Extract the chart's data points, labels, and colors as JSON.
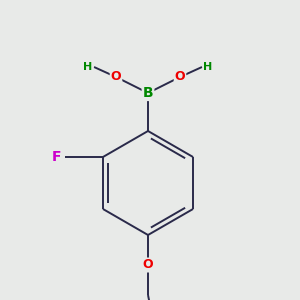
{
  "background_color": "#e8eae8",
  "bond_color": "#2a2a4a",
  "bond_width": 1.4,
  "atom_colors": {
    "B": "#008800",
    "O": "#ee0000",
    "H": "#008800",
    "F": "#cc00cc",
    "Cl": "#228800",
    "C": "#2a2a4a"
  },
  "figsize": [
    3.0,
    3.0
  ],
  "dpi": 100
}
